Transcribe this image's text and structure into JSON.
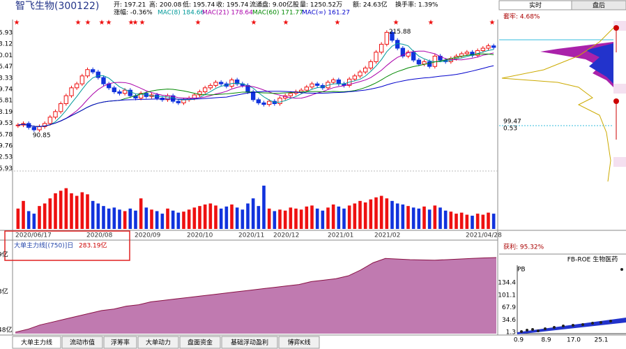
{
  "header": {
    "name": "智飞生物(300122)",
    "line1": [
      "开: 197.21",
      "高: 200.08",
      "低: 195.74",
      "收: 195.74",
      "流通盘: 9.00亿股",
      "量: 1250.52万",
      "额: 24.63亿",
      "换手率: 1.39%"
    ],
    "line2": [
      {
        "text": "涨幅: -0.36%",
        "color": "#000000"
      },
      {
        "text": "MAC(8) 184.66",
        "color": "#009999"
      },
      {
        "text": "MAC(21) 178.64",
        "color": "#aa00aa"
      },
      {
        "text": "MAC(60) 171.77",
        "color": "#008800"
      },
      {
        "text": "MAC(∞) 161.27",
        "color": "#0000cc"
      }
    ]
  },
  "price_chart": {
    "type": "candlestick",
    "closes": [
      98,
      100,
      95,
      92,
      96,
      100,
      108,
      115,
      125,
      135,
      145,
      150,
      160,
      168,
      165,
      158,
      150,
      145,
      140,
      138,
      142,
      135,
      132,
      138,
      134,
      136,
      132,
      130,
      135,
      128,
      126,
      130,
      132,
      136,
      140,
      145,
      148,
      152,
      150,
      147,
      155,
      150,
      148,
      140,
      130,
      126,
      124,
      128,
      125,
      132,
      135,
      138,
      140,
      142,
      146,
      150,
      148,
      145,
      152,
      155,
      150,
      148,
      156,
      160,
      165,
      170,
      178,
      190,
      200,
      215,
      205,
      195,
      185,
      190,
      180,
      175,
      178,
      172,
      185,
      180,
      178,
      182,
      185,
      188,
      190,
      186,
      192,
      195,
      198,
      196
    ],
    "ylim": [
      40,
      225
    ],
    "up_color": "#ee1111",
    "down_color": "#1133dd",
    "axis_labels": [
      "5.93",
      "3.12",
      "0.01",
      "6.47",
      "3.33",
      "9.74",
      "6.81",
      "3.19",
      "9.53",
      "5.78",
      "9.76",
      "2.53",
      "5.93"
    ],
    "high_label": "215.88",
    "low_label": "90.85",
    "dates": [
      "2020/06/17",
      "2020/08",
      "2020/09",
      "2020/10",
      "2020/11",
      "2020/12",
      "2021/01",
      "2021/02",
      "2021/04/28"
    ]
  },
  "volume": {
    "values": [
      40,
      55,
      35,
      30,
      45,
      50,
      60,
      70,
      75,
      80,
      70,
      65,
      72,
      68,
      55,
      50,
      45,
      40,
      42,
      38,
      35,
      40,
      36,
      60,
      42,
      38,
      35,
      30,
      40,
      36,
      32,
      34,
      38,
      42,
      45,
      48,
      50,
      46,
      40,
      44,
      48,
      42,
      38,
      50,
      60,
      45,
      85,
      40,
      35,
      38,
      36,
      42,
      40,
      38,
      44,
      46,
      40,
      36,
      42,
      48,
      44,
      40,
      46,
      50,
      55,
      52,
      58,
      62,
      65,
      60,
      55,
      50,
      48,
      45,
      42,
      40,
      44,
      38,
      46,
      42,
      36,
      34,
      30,
      32,
      28,
      26,
      30,
      28,
      32,
      30
    ],
    "ylim": [
      0,
      100
    ]
  },
  "main_force": {
    "title": "大单主力线[(750)]日",
    "current": "283.19亿",
    "axis_labels": [
      "9亿",
      "3亿",
      "48亿"
    ],
    "values": [
      25,
      35,
      50,
      60,
      70,
      80,
      90,
      100,
      105,
      115,
      120,
      130,
      135,
      140,
      145,
      150,
      155,
      160,
      165,
      170,
      175,
      180,
      185,
      190,
      200,
      205,
      210,
      220,
      240,
      265,
      280,
      278,
      276,
      275,
      274,
      276,
      278,
      280,
      282,
      283.19
    ],
    "ylim": [
      20,
      300
    ]
  },
  "tabs": [
    "大单主力线",
    "流动市值",
    "浮筹率",
    "大单动力",
    "盘面资金",
    "基础浮动盈利",
    "博弈K线"
  ],
  "side": {
    "tab_realtime": "实时",
    "tab_after": "盘后",
    "trapped": "套牢: 4.68%",
    "price_mark": "99.47",
    "ratio_mark": "0.53",
    "profit": "获利: 95.32%",
    "scatter_title": "FB-ROE 生物医药",
    "y_name": "PB",
    "yticks": [
      "134.4",
      "101.1",
      "67.9",
      "34.6",
      "1.3"
    ],
    "xticks": [
      "0.9",
      "8.9",
      "17.0",
      "25.1"
    ]
  }
}
